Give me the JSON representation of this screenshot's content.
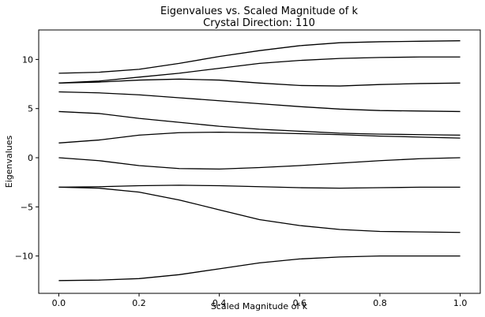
{
  "chart_data": {
    "type": "line",
    "title": "Eigenvalues vs. Scaled Magnitude of k",
    "subtitle": "Crystal Direction: 110",
    "xlabel": "Scaled Magnitude of k",
    "ylabel": "Eigenvalues",
    "xlim": [
      -0.05,
      1.05
    ],
    "ylim": [
      -13.8,
      13.0
    ],
    "xticks": [
      0.0,
      0.2,
      0.4,
      0.6,
      0.8,
      1.0
    ],
    "xtick_labels": [
      "0.0",
      "0.2",
      "0.4",
      "0.6",
      "0.8",
      "1.0"
    ],
    "yticks": [
      10,
      5,
      0,
      -5,
      -10
    ],
    "ytick_labels": [
      "10",
      "5",
      "0",
      "−5",
      "−10"
    ],
    "grid": false,
    "line_color": "#000000",
    "x": [
      0.0,
      0.1,
      0.2,
      0.3,
      0.4,
      0.5,
      0.6,
      0.7,
      0.8,
      0.9,
      1.0
    ],
    "series": [
      {
        "values": [
          8.6,
          8.7,
          9.0,
          9.6,
          10.3,
          10.9,
          11.4,
          11.7,
          11.8,
          11.85,
          11.9
        ]
      },
      {
        "values": [
          7.6,
          7.8,
          8.2,
          8.6,
          9.1,
          9.6,
          9.9,
          10.1,
          10.2,
          10.25,
          10.25
        ]
      },
      {
        "values": [
          7.6,
          7.7,
          7.9,
          8.0,
          7.9,
          7.6,
          7.35,
          7.3,
          7.45,
          7.55,
          7.6
        ]
      },
      {
        "values": [
          6.7,
          6.6,
          6.4,
          6.1,
          5.8,
          5.5,
          5.2,
          4.95,
          4.8,
          4.75,
          4.7
        ]
      },
      {
        "values": [
          4.7,
          4.5,
          4.0,
          3.6,
          3.2,
          2.9,
          2.7,
          2.5,
          2.4,
          2.35,
          2.3
        ]
      },
      {
        "values": [
          1.5,
          1.8,
          2.3,
          2.55,
          2.6,
          2.55,
          2.45,
          2.35,
          2.2,
          2.1,
          2.0
        ]
      },
      {
        "values": [
          0.0,
          -0.3,
          -0.8,
          -1.1,
          -1.15,
          -1.0,
          -0.8,
          -0.55,
          -0.3,
          -0.1,
          0.0
        ]
      },
      {
        "values": [
          -3.0,
          -2.95,
          -2.85,
          -2.8,
          -2.85,
          -2.95,
          -3.05,
          -3.1,
          -3.05,
          -3.0,
          -3.0
        ]
      },
      {
        "values": [
          -3.0,
          -3.1,
          -3.5,
          -4.3,
          -5.3,
          -6.3,
          -6.9,
          -7.3,
          -7.5,
          -7.55,
          -7.6
        ]
      },
      {
        "values": [
          -12.5,
          -12.45,
          -12.3,
          -11.9,
          -11.3,
          -10.7,
          -10.3,
          -10.1,
          -10.0,
          -10.0,
          -10.0
        ]
      }
    ]
  }
}
